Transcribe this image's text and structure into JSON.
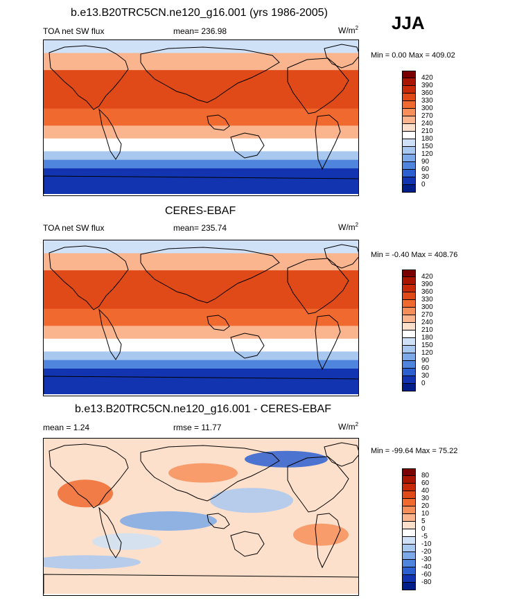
{
  "header": {
    "main_title": "b.e13.B20TRC5CN.ne120_g16.001 (yrs 1986-2005)",
    "season": "JJA"
  },
  "panels": [
    {
      "title": "",
      "left_label": "TOA net SW flux",
      "center_label": "mean= 236.98",
      "units_base": "W/m",
      "units_exp": "2",
      "minmax": "Min =   0.00 Max = 409.02"
    },
    {
      "title": "CERES-EBAF",
      "left_label": "TOA net SW flux",
      "center_label": "mean= 235.74",
      "units_base": "W/m",
      "units_exp": "2",
      "minmax": "Min =  -0.40 Max = 408.76"
    },
    {
      "title": "b.e13.B20TRC5CN.ne120_g16.001 - CERES-EBAF",
      "left_label": "mean =   1.24",
      "center_label": "rmse =  11.77",
      "units_base": "W/m",
      "units_exp": "2",
      "minmax": "Min = -99.64 Max =  75.22"
    }
  ],
  "colorbars": {
    "absolute": {
      "labels": [
        "420",
        "390",
        "360",
        "330",
        "300",
        "270",
        "240",
        "210",
        "180",
        "150",
        "120",
        "90",
        "60",
        "30",
        "0"
      ],
      "colors": [
        "#7a0000",
        "#a81500",
        "#c82a08",
        "#e04a18",
        "#f06a30",
        "#f78f5a",
        "#fab58e",
        "#fde0cb",
        "#ffffff",
        "#cfe1f7",
        "#a9c8f0",
        "#7da9e8",
        "#4f85dc",
        "#2c5fd0",
        "#1234b0",
        "#001e88"
      ]
    },
    "difference": {
      "labels": [
        "80",
        "60",
        "40",
        "30",
        "20",
        "10",
        "5",
        "0",
        "-5",
        "-10",
        "-20",
        "-30",
        "-40",
        "-60",
        "-80"
      ],
      "colors": [
        "#7a0000",
        "#a81500",
        "#c82a08",
        "#e04a18",
        "#f06a30",
        "#f78f5a",
        "#fab58e",
        "#fde0cb",
        "#ffffff",
        "#cfe1f7",
        "#a9c8f0",
        "#7da9e8",
        "#4f85dc",
        "#2c5fd0",
        "#1234b0",
        "#001e88"
      ]
    }
  },
  "field_data": {
    "absolute_bands": [
      {
        "lat_top": 90,
        "lat_bottom": 75,
        "value": 150
      },
      {
        "lat_top": 75,
        "lat_bottom": 55,
        "value": 250
      },
      {
        "lat_top": 55,
        "lat_bottom": 35,
        "value": 330
      },
      {
        "lat_top": 35,
        "lat_bottom": 10,
        "value": 350
      },
      {
        "lat_top": 10,
        "lat_bottom": -10,
        "value": 310
      },
      {
        "lat_top": -10,
        "lat_bottom": -25,
        "value": 260
      },
      {
        "lat_top": -25,
        "lat_bottom": -40,
        "value": 200
      },
      {
        "lat_top": -40,
        "lat_bottom": -50,
        "value": 130
      },
      {
        "lat_top": -50,
        "lat_bottom": -60,
        "value": 70
      },
      {
        "lat_top": -60,
        "lat_bottom": -90,
        "value": 20
      }
    ]
  }
}
